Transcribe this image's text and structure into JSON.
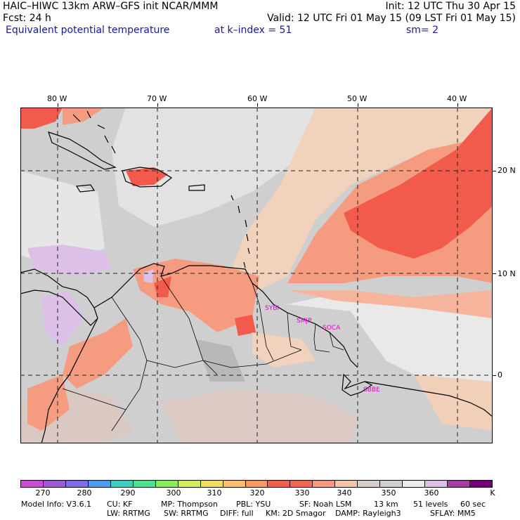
{
  "header": {
    "line1_left": "HAIC–HIWC 13km ARW–GFS init   NCAR/MMM",
    "line1_right": "Init: 12 UTC Thu 30 Apr 15",
    "line2_left": "Fcst:   24 h",
    "line2_right": "Valid: 12 UTC Fri 01 May 15 (09 LST Fri 01 May 15)",
    "line3_left": "Equivalent potential temperature",
    "line3_mid": "at k–index =  51",
    "line3_right": "sm= 2"
  },
  "axes": {
    "lon_labels": [
      "80 W",
      "70 W",
      "60 W",
      "50 W",
      "40 W"
    ],
    "lat_labels": [
      "20 N",
      "10 N",
      "0"
    ]
  },
  "stations": [
    "SYBI",
    "SMJP",
    "SOCA",
    "SBBE"
  ],
  "colorbar": {
    "labels": [
      "270",
      "280",
      "290",
      "300",
      "310",
      "320",
      "330",
      "340",
      "350",
      "360"
    ],
    "unit": "K",
    "colors": [
      "#c84fd0",
      "#a05ad0",
      "#7f6ee0",
      "#4f9ce8",
      "#3ad0c0",
      "#4ce090",
      "#8ee860",
      "#d2ee60",
      "#f3dc60",
      "#f5c070",
      "#f59a60",
      "#f06050",
      "#f06855",
      "#f59a80",
      "#f3c6a8",
      "#d8cdc8",
      "#d0d0d0",
      "#ebebeb",
      "#dcc0e8",
      "#a040a0",
      "#700070"
    ]
  },
  "footer": {
    "line1": [
      "Model Info: V3.6.1",
      "CU: KF",
      "MP: Thompson",
      "PBL: YSU",
      "SF: Noah LSM",
      "13 km",
      "51 levels",
      "60 sec"
    ],
    "line2": [
      "LW: RRTMG",
      "SW: RRTMG",
      "DIFF: full",
      "KM: 2D Smagor",
      "DAMP: Rayleigh3",
      "SFLAY: MM5"
    ]
  }
}
